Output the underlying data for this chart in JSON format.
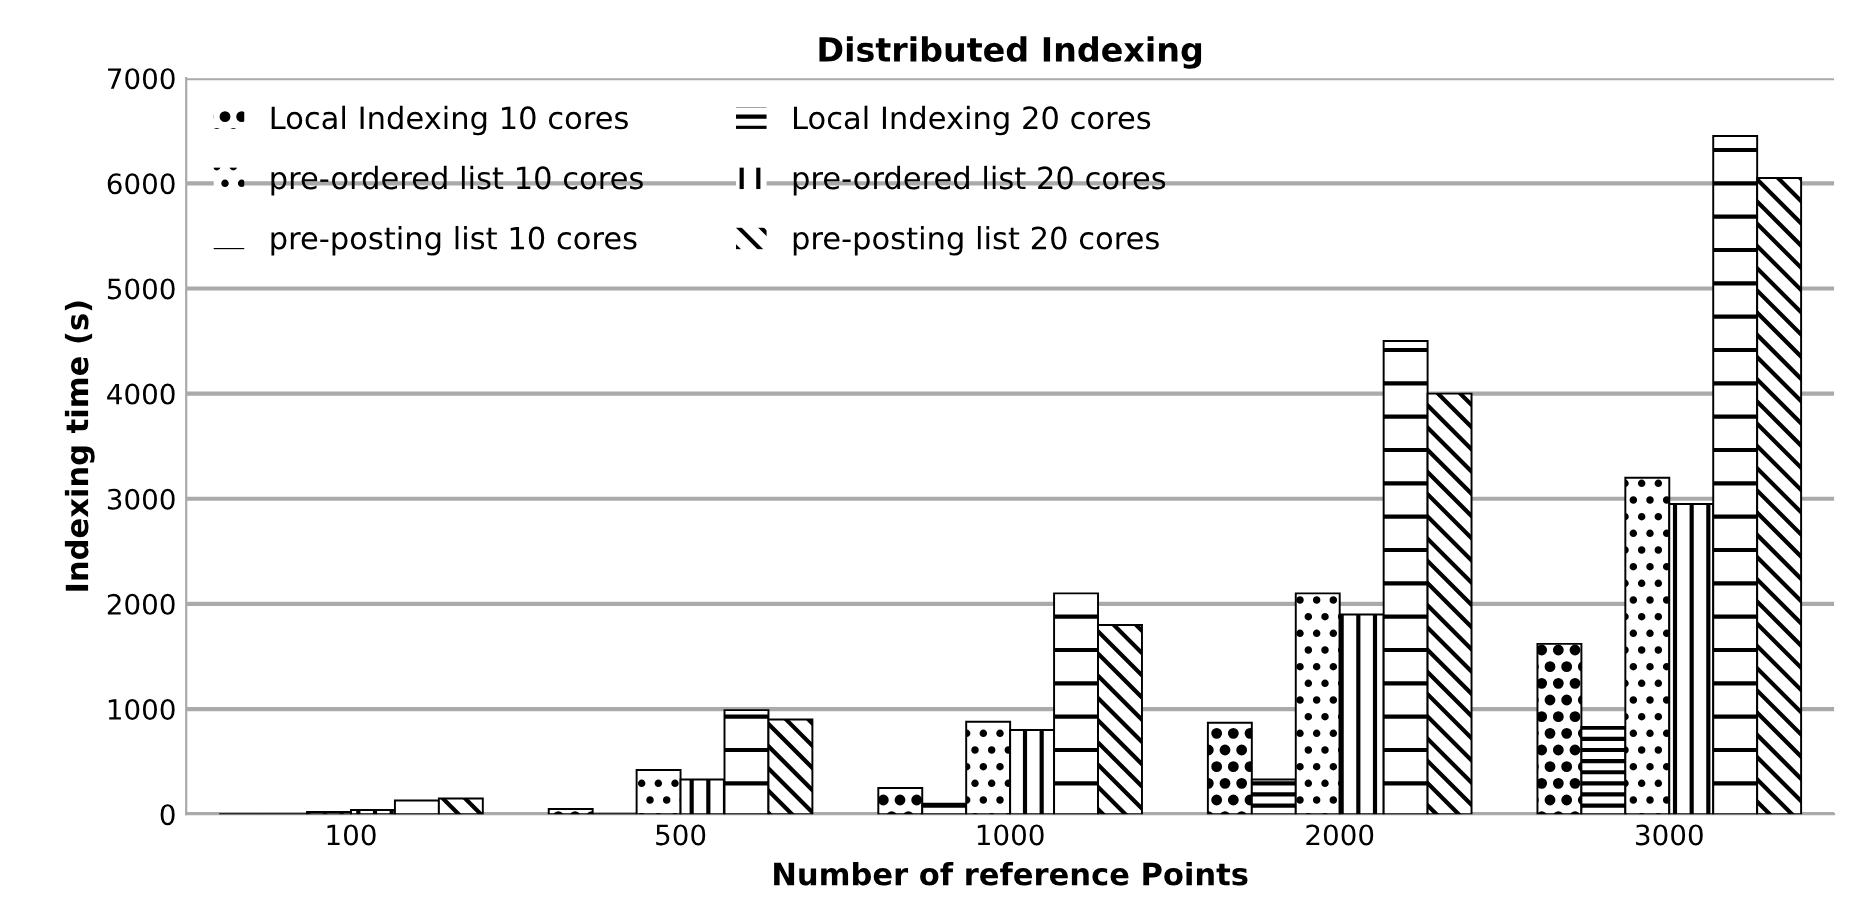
{
  "chart_data": {
    "type": "bar",
    "title": "Distributed Indexing",
    "xlabel": "Number of reference Points",
    "ylabel": "Indexing time (s)",
    "categories": [
      "100",
      "500",
      "1000",
      "2000",
      "3000"
    ],
    "series": [
      {
        "name": "Local Indexing 10 cores",
        "color": "#000000",
        "values": [
          0,
          50,
          250,
          870,
          1620
        ]
      },
      {
        "name": "Local Indexing 20 cores",
        "color": "#000000",
        "values": [
          0,
          0,
          100,
          330,
          830
        ]
      },
      {
        "name": "pre-ordered list 10 cores",
        "color": "#000000",
        "values": [
          20,
          420,
          880,
          2100,
          3200
        ]
      },
      {
        "name": "pre-ordered list 20 cores",
        "color": "#000000",
        "values": [
          40,
          330,
          800,
          1900,
          2950
        ]
      },
      {
        "name": "pre-posting list 10 cores",
        "color": "#000000",
        "values": [
          130,
          990,
          2100,
          4500,
          6450
        ]
      },
      {
        "name": "pre-posting list 20 cores",
        "color": "#000000",
        "values": [
          150,
          900,
          1800,
          4000,
          6050
        ]
      }
    ],
    "ylim": [
      0,
      7000
    ],
    "yticks": [
      0,
      1000,
      2000,
      3000,
      4000,
      5000,
      6000,
      7000
    ],
    "grid": "y",
    "legend": "top left"
  }
}
